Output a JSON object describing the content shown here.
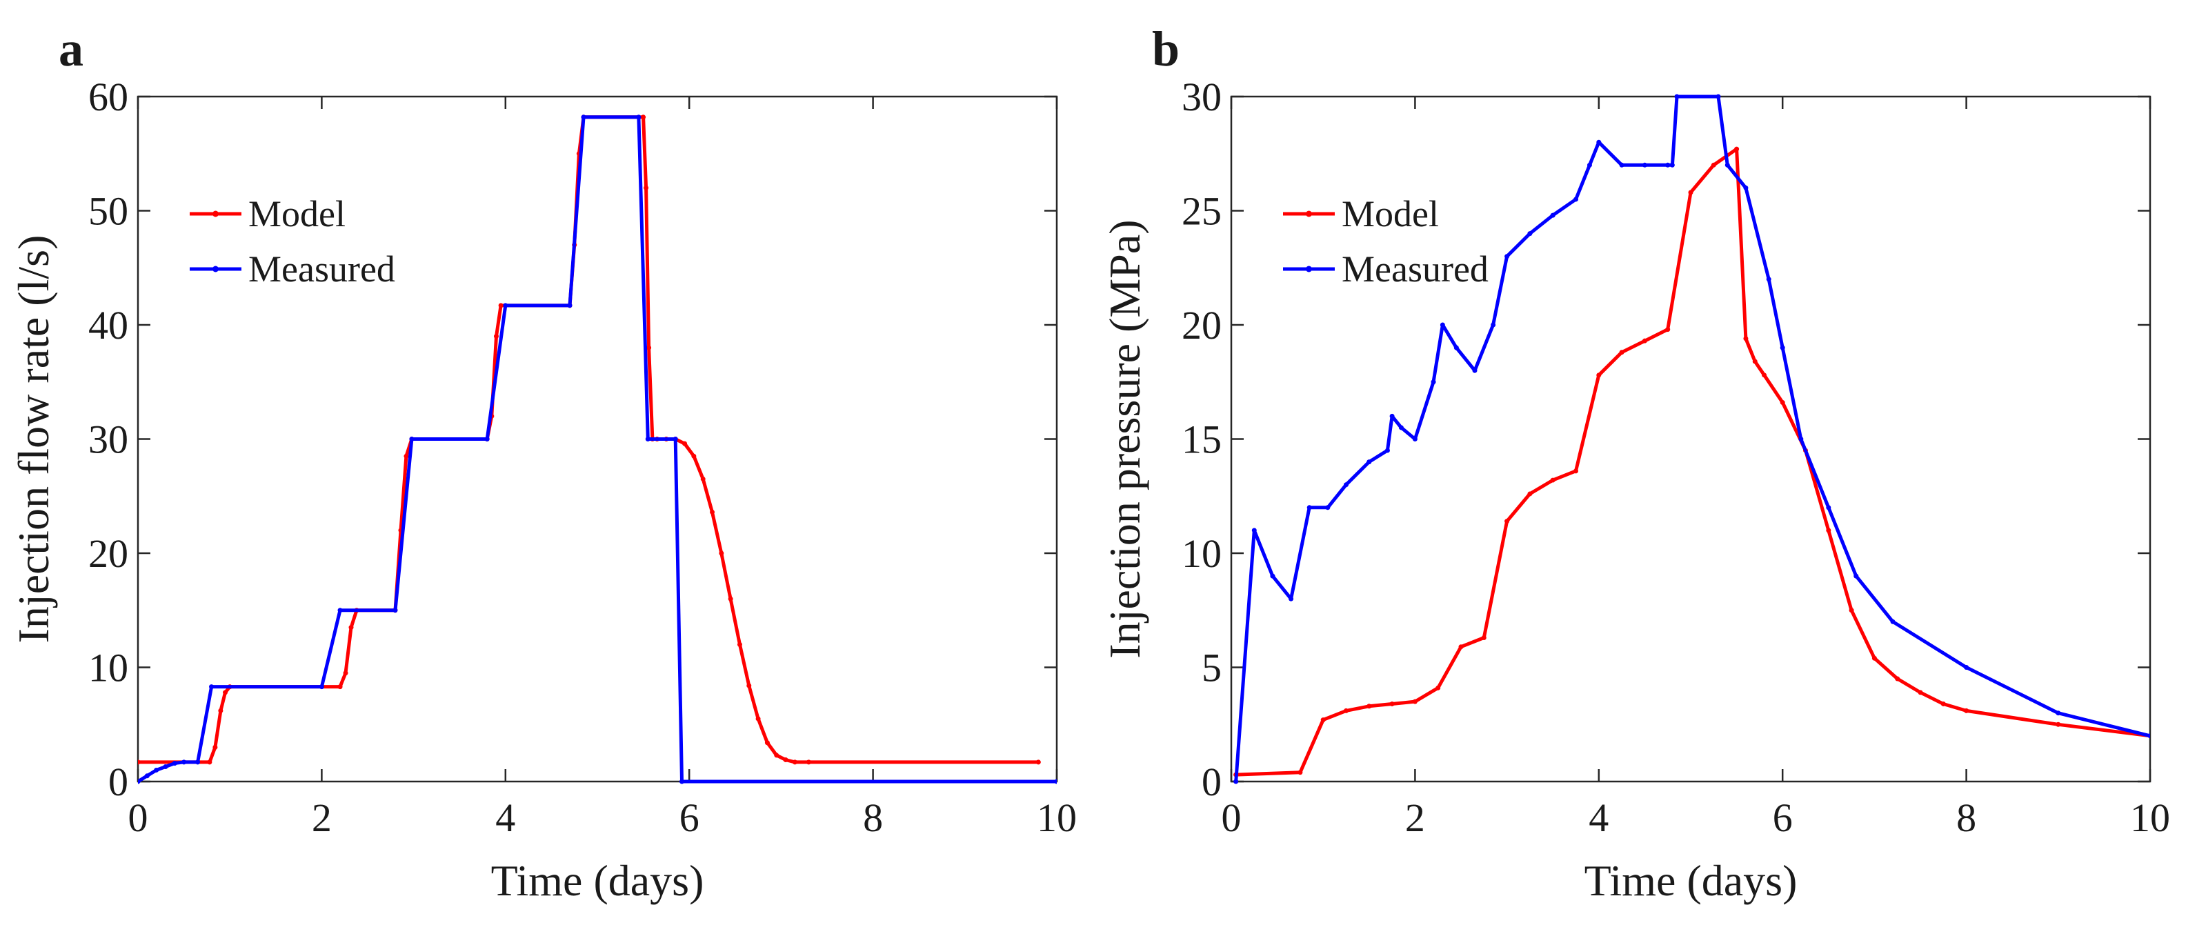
{
  "chart_data": [
    {
      "panel": "a",
      "type": "line",
      "title": "",
      "xlabel": "Time (days)",
      "ylabel": "Injection flow rate (l/s)",
      "xlim": [
        0,
        10
      ],
      "ylim": [
        0,
        60
      ],
      "xticks": [
        0,
        2,
        4,
        6,
        8,
        10
      ],
      "yticks": [
        0,
        10,
        20,
        30,
        40,
        50,
        60
      ],
      "xtick_labels": [
        "0",
        "2",
        "4",
        "6",
        "8",
        "10"
      ],
      "ytick_labels": [
        "0",
        "10",
        "20",
        "30",
        "40",
        "50",
        "60"
      ],
      "grid": false,
      "legend_position": "top-left",
      "series": [
        {
          "name": "Model",
          "color": "#ff0000",
          "x": [
            0,
            0.78,
            0.84,
            0.9,
            0.95,
            1.0,
            2.2,
            2.26,
            2.32,
            2.38,
            2.8,
            2.86,
            2.92,
            2.98,
            3.8,
            3.85,
            3.9,
            3.95,
            4.7,
            4.75,
            4.8,
            4.85,
            5.5,
            5.53,
            5.56,
            5.6,
            5.65,
            5.75,
            5.85,
            5.95,
            6.05,
            6.15,
            6.25,
            6.35,
            6.45,
            6.55,
            6.65,
            6.75,
            6.85,
            6.95,
            7.05,
            7.15,
            7.3,
            9.8
          ],
          "y": [
            1.7,
            1.7,
            3.0,
            6.2,
            7.8,
            8.3,
            8.3,
            9.5,
            13.5,
            15.0,
            15.0,
            22,
            28.5,
            30.0,
            30.0,
            32,
            39,
            41.7,
            41.7,
            47,
            55,
            58.2,
            58.2,
            52,
            38,
            30.0,
            30.0,
            30.0,
            30.0,
            29.6,
            28.5,
            26.5,
            23.6,
            20.0,
            16.0,
            12.0,
            8.4,
            5.5,
            3.4,
            2.3,
            1.9,
            1.7,
            1.7,
            1.7
          ]
        },
        {
          "name": "Measured",
          "color": "#0000ff",
          "x": [
            0,
            0.1,
            0.2,
            0.3,
            0.4,
            0.5,
            0.65,
            0.8,
            2.0,
            2.2,
            2.8,
            2.98,
            3.8,
            4.0,
            4.7,
            4.85,
            5.45,
            5.55,
            5.85,
            5.92,
            10
          ],
          "y": [
            0,
            0.5,
            1.0,
            1.3,
            1.6,
            1.7,
            1.7,
            8.3,
            8.3,
            15.0,
            15.0,
            30.0,
            30.0,
            41.7,
            41.7,
            58.2,
            58.2,
            30.0,
            30.0,
            0,
            0
          ]
        }
      ]
    },
    {
      "panel": "b",
      "type": "line",
      "title": "",
      "xlabel": "Time (days)",
      "ylabel": "Injection pressure (MPa)",
      "xlim": [
        0,
        10
      ],
      "ylim": [
        0,
        30
      ],
      "xticks": [
        0,
        2,
        4,
        6,
        8,
        10
      ],
      "yticks": [
        0,
        5,
        10,
        15,
        20,
        25,
        30
      ],
      "xtick_labels": [
        "0",
        "2",
        "4",
        "6",
        "8",
        "10"
      ],
      "ytick_labels": [
        "0",
        "5",
        "10",
        "15",
        "20",
        "25",
        "30"
      ],
      "grid": false,
      "legend_position": "top-left",
      "series": [
        {
          "name": "Model",
          "color": "#ff0000",
          "x": [
            0.05,
            0.75,
            1.0,
            1.25,
            1.5,
            1.75,
            2.0,
            2.25,
            2.5,
            2.75,
            3.0,
            3.25,
            3.5,
            3.75,
            4.0,
            4.25,
            4.5,
            4.75,
            5.0,
            5.25,
            5.5,
            5.6,
            5.7,
            5.8,
            6.0,
            6.25,
            6.5,
            6.75,
            7.0,
            7.25,
            7.5,
            7.75,
            8.0,
            9.0,
            10.0
          ],
          "y": [
            0.3,
            0.4,
            2.7,
            3.1,
            3.3,
            3.4,
            3.5,
            4.1,
            5.9,
            6.3,
            11.4,
            12.6,
            13.2,
            13.6,
            17.8,
            18.8,
            19.3,
            19.8,
            25.8,
            27.0,
            27.7,
            19.4,
            18.4,
            17.8,
            16.6,
            14.5,
            11.0,
            7.5,
            5.4,
            4.5,
            3.9,
            3.4,
            3.1,
            2.5,
            2.0
          ]
        },
        {
          "name": "Measured",
          "color": "#0000ff",
          "x": [
            0.05,
            0.25,
            0.45,
            0.65,
            0.85,
            1.05,
            1.25,
            1.5,
            1.7,
            1.75,
            1.85,
            2.0,
            2.2,
            2.3,
            2.45,
            2.65,
            2.85,
            3.0,
            3.25,
            3.5,
            3.75,
            3.9,
            4.0,
            4.25,
            4.5,
            4.75,
            4.8,
            4.85,
            5.3,
            5.4,
            5.6,
            5.85,
            6.0,
            6.2,
            6.5,
            6.8,
            7.2,
            8.0,
            9.0,
            10.0
          ],
          "y": [
            0,
            11,
            9.0,
            8.0,
            12.0,
            12.0,
            13.0,
            14.0,
            14.5,
            16.0,
            15.5,
            15.0,
            17.5,
            20.0,
            19.0,
            18.0,
            20.0,
            23.0,
            24.0,
            24.8,
            25.5,
            27.0,
            28.0,
            27.0,
            27.0,
            27.0,
            27.0,
            30.0,
            30.0,
            27.0,
            26.0,
            22.0,
            19.0,
            15.0,
            12.0,
            9.0,
            7.0,
            5.0,
            3.0,
            2.0
          ]
        }
      ]
    }
  ]
}
